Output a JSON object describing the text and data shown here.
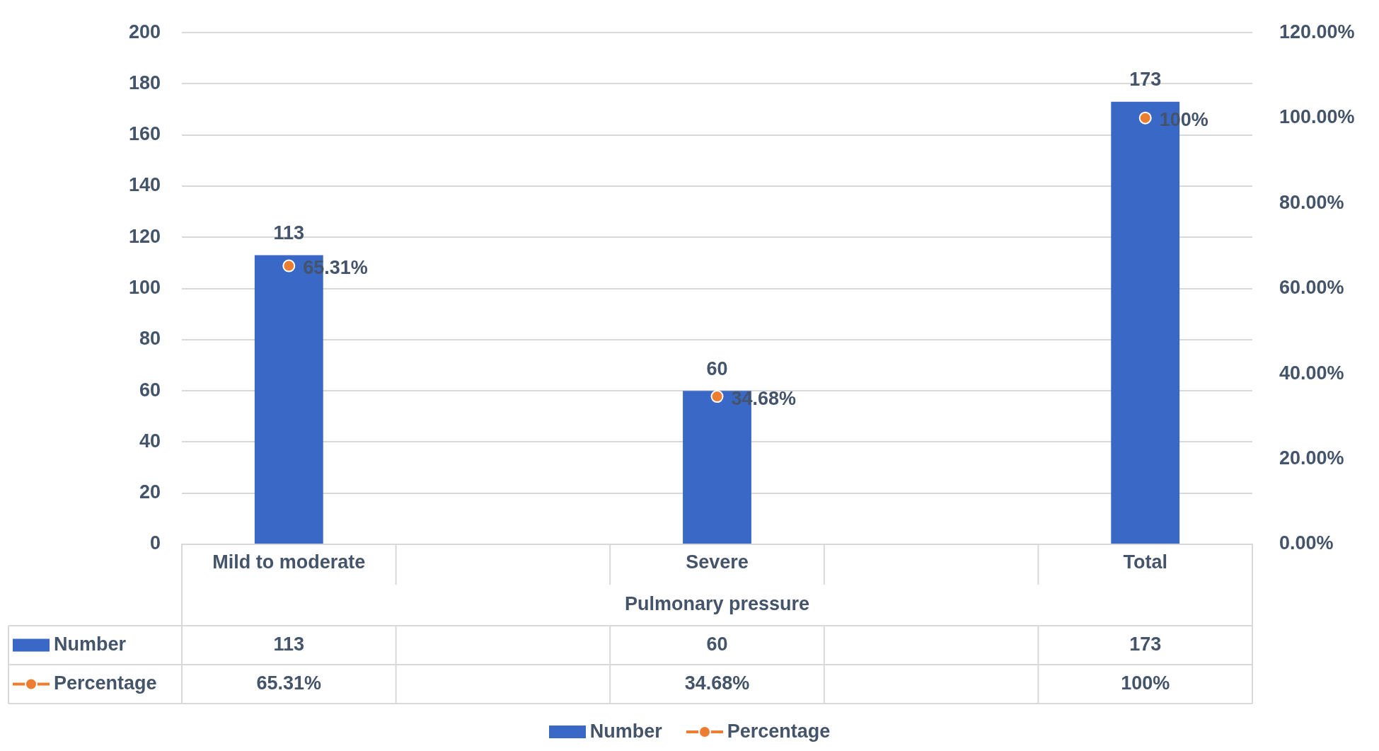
{
  "chart_data": {
    "type": "bar",
    "categories": [
      "Mild to moderate",
      null,
      "Severe",
      null,
      "Total"
    ],
    "xlabel": "Pulmonary pressure",
    "series": [
      {
        "name": "Number",
        "color": "#3a68c6",
        "values": [
          113,
          null,
          60,
          null,
          173
        ],
        "value_labels": [
          "113",
          null,
          "60",
          null,
          "173"
        ]
      },
      {
        "name": "Percentage",
        "type": "scatter",
        "axis": "y2",
        "color": "#ed7d31",
        "marker": "circle",
        "values": [
          65.31,
          null,
          34.68,
          null,
          100
        ],
        "value_labels": [
          "65.31%",
          null,
          "34.68%",
          null,
          "100%"
        ]
      }
    ],
    "ylim": [
      0,
      200
    ],
    "yticks": [
      0,
      20,
      40,
      60,
      80,
      100,
      120,
      140,
      160,
      180,
      200
    ],
    "y2lim": [
      0,
      120
    ],
    "y2ticks": [
      {
        "value": 0,
        "label": "0.00%"
      },
      {
        "value": 20,
        "label": "20.00%"
      },
      {
        "value": 40,
        "label": "40.00%"
      },
      {
        "value": 60,
        "label": "60.00%"
      },
      {
        "value": 80,
        "label": "80.00%"
      },
      {
        "value": 100,
        "label": "100.00%"
      },
      {
        "value": 120,
        "label": "120.00%"
      }
    ],
    "grid": "y",
    "legend": "bottom"
  }
}
